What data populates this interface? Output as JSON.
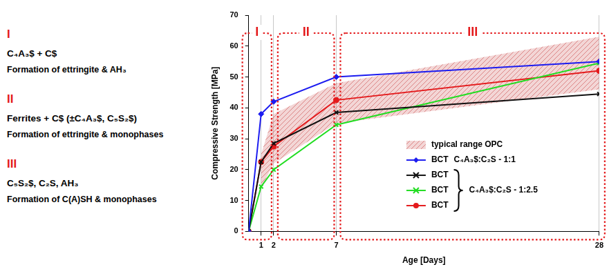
{
  "chart_data": {
    "type": "line",
    "x_label": "Age [Days]",
    "y_label": "Compressive Strength [MPa]",
    "x": [
      0,
      1,
      2,
      7,
      28
    ],
    "xlim": [
      0,
      28
    ],
    "xticks": [
      1,
      2,
      7,
      28
    ],
    "ylim": [
      0,
      70
    ],
    "yticks": [
      0,
      10,
      20,
      30,
      40,
      50,
      60,
      70
    ],
    "grid": "x",
    "legend": "lower right",
    "band": {
      "name": "typical range OPC",
      "color": "#d46a6a",
      "x": [
        1,
        2,
        7,
        28
      ],
      "lower": [
        14,
        22,
        35,
        46
      ],
      "upper": [
        25,
        38,
        48,
        63
      ]
    },
    "series": [
      {
        "name": "BCT",
        "group": "C₄A₃$:C₂S - 1:1",
        "color": "#1c1cf0",
        "marker": "diamond",
        "values": [
          0,
          38,
          42,
          50,
          55
        ]
      },
      {
        "name": "BCT",
        "group": "C₄A₃$:C₂S - 1:2.5",
        "color": "#111111",
        "marker": "x",
        "values": [
          0,
          22.5,
          28.5,
          38.5,
          44.5
        ]
      },
      {
        "name": "BCT",
        "group": "C₄A₃$:C₂S - 1:2.5",
        "color": "#22dd22",
        "marker": "x",
        "values": [
          0,
          14.5,
          20,
          34.5,
          54.5
        ]
      },
      {
        "name": "BCT",
        "group": "C₄A₃$:C₂S - 1:2.5",
        "color": "#e41a1c",
        "marker": "circle",
        "values": [
          0,
          22.5,
          27.5,
          42.5,
          52
        ]
      }
    ],
    "phases": [
      {
        "label": "I",
        "x": [
          0,
          2
        ],
        "reactants": "C₄A₃$ + C$",
        "products": "Formation of ettringite & AH₃"
      },
      {
        "label": "II",
        "x": [
          2,
          7
        ],
        "reactants": "Ferrites + C$ (±C₄A₃$, C₅S₂$)",
        "products": "Formation of ettringite & monophases"
      },
      {
        "label": "III",
        "x": [
          7,
          28
        ],
        "reactants": "C₅S₂$, C₂S, AH₃",
        "products": "Formation of C(A)SH & monophases"
      }
    ]
  }
}
